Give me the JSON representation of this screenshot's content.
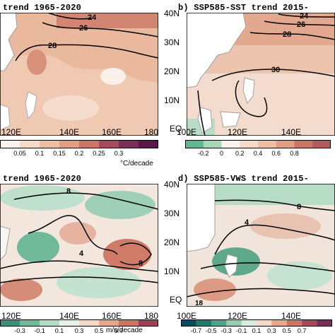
{
  "panels": {
    "a": {
      "title": "trend 1965-2020",
      "x_ticks": [
        "120E",
        "140E",
        "160E",
        "180"
      ],
      "contour_labels": [
        "24",
        "26",
        "28"
      ]
    },
    "b": {
      "title": "b) SSP585-SST trend 2015-",
      "x_ticks": [
        "100E",
        "120E",
        "140E"
      ],
      "y_ticks": [
        "40N",
        "30N",
        "20N",
        "10N",
        "EQ"
      ],
      "contour_labels": [
        "24",
        "26",
        "28",
        "30"
      ]
    },
    "c": {
      "title": "trend 1965-2020",
      "x_ticks": [
        "120E",
        "140E",
        "160E",
        "180"
      ],
      "contour_labels": [
        "8",
        "4",
        "8"
      ]
    },
    "d": {
      "title": "d) SSP585-VWS trend 2015-",
      "x_ticks": [
        "100E",
        "120E",
        "140E"
      ],
      "y_ticks": [
        "40N",
        "30N",
        "20N",
        "10N",
        "EQ"
      ],
      "contour_labels": [
        "8",
        "4",
        "18"
      ]
    }
  },
  "colorbars": {
    "sst_left": {
      "ticks": [
        "0.05",
        "0.1",
        "0.15",
        "0.2",
        "0.25",
        "0.3"
      ],
      "unit": "°C/decade",
      "colors": [
        "#fbf4ee",
        "#f6dac8",
        "#eebfa3",
        "#e09f82",
        "#cc7468",
        "#a44a5a",
        "#7a2d59",
        "#5a1848"
      ]
    },
    "sst_right": {
      "ticks": [
        "-0.2",
        "0",
        "0.2",
        "0.4",
        "0.6",
        "0.8"
      ],
      "colors": [
        "#60b890",
        "#a8d8b8",
        "#fbf4ee",
        "#f6dac8",
        "#eebfa3",
        "#e09f82",
        "#cc7468",
        "#b25a5e"
      ]
    },
    "vws_left": {
      "ticks": [
        "-0.3",
        "-0.1",
        "0.1",
        "0.3",
        "0.5",
        "0.7"
      ],
      "unit": "m/s/decade",
      "colors": [
        "#3a8f7a",
        "#6fb89a",
        "#b4dcc4",
        "#e8f2ea",
        "#f6dac8",
        "#e4a98c",
        "#cc7468",
        "#9e3f55"
      ]
    },
    "vws_right": {
      "ticks": [
        "-0.7",
        "-0.5",
        "-0.3",
        "-0.1",
        "0.1",
        "0.3",
        "0.5",
        "0.7"
      ],
      "colors": [
        "#0e4a5e",
        "#1f7a6a",
        "#4ea48a",
        "#97ccb2",
        "#d8ece0",
        "#f6dac8",
        "#e4a98c",
        "#cc7468",
        "#a44a5a",
        "#7a2d59"
      ]
    }
  },
  "colors": {
    "sst_warm": "#e9b8a0",
    "sst_light": "#f3d8c8",
    "vws_green": "#9ccdb4",
    "vws_red": "#d98a78",
    "land": "#ffffff",
    "coast": "#a0a0a0"
  }
}
